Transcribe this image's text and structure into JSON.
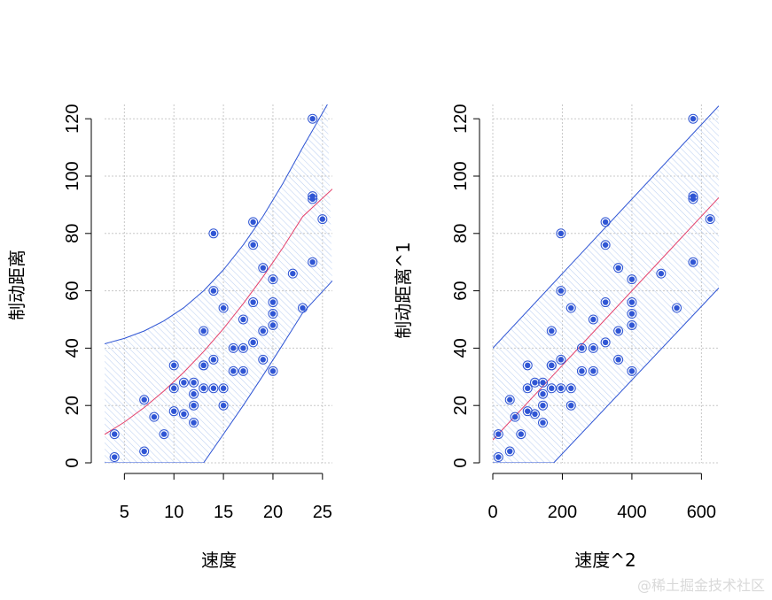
{
  "watermark": "@稀土掘金技术社区",
  "colors": {
    "points": "#2f55d4",
    "fit_line": "#e4406a",
    "band": "#2f55d4",
    "hatch": "#bcd0f2",
    "grid": "#c8c8c8",
    "axis": "#000000"
  },
  "chart_data": [
    {
      "type": "scatter",
      "xlabel": "速度",
      "ylabel": "制动距离",
      "xlim": [
        3,
        26
      ],
      "ylim": [
        0,
        125
      ],
      "xticks": [
        5,
        10,
        15,
        20,
        25
      ],
      "yticks": [
        0,
        20,
        40,
        60,
        80,
        100,
        120
      ],
      "grid": true,
      "points": [
        [
          4,
          2
        ],
        [
          4,
          10
        ],
        [
          7,
          4
        ],
        [
          7,
          22
        ],
        [
          8,
          16
        ],
        [
          9,
          10
        ],
        [
          10,
          18
        ],
        [
          10,
          26
        ],
        [
          10,
          34
        ],
        [
          11,
          17
        ],
        [
          11,
          28
        ],
        [
          12,
          14
        ],
        [
          12,
          20
        ],
        [
          12,
          24
        ],
        [
          12,
          28
        ],
        [
          13,
          26
        ],
        [
          13,
          34
        ],
        [
          13,
          34
        ],
        [
          13,
          46
        ],
        [
          14,
          26
        ],
        [
          14,
          36
        ],
        [
          14,
          60
        ],
        [
          14,
          80
        ],
        [
          15,
          20
        ],
        [
          15,
          26
        ],
        [
          15,
          54
        ],
        [
          16,
          32
        ],
        [
          16,
          40
        ],
        [
          17,
          32
        ],
        [
          17,
          40
        ],
        [
          17,
          50
        ],
        [
          18,
          42
        ],
        [
          18,
          56
        ],
        [
          18,
          76
        ],
        [
          18,
          84
        ],
        [
          19,
          36
        ],
        [
          19,
          46
        ],
        [
          19,
          68
        ],
        [
          20,
          32
        ],
        [
          20,
          48
        ],
        [
          20,
          52
        ],
        [
          20,
          56
        ],
        [
          20,
          64
        ],
        [
          22,
          66
        ],
        [
          23,
          54
        ],
        [
          24,
          70
        ],
        [
          24,
          92
        ],
        [
          24,
          93
        ],
        [
          24,
          120
        ],
        [
          25,
          85
        ]
      ],
      "fit_curve": [
        [
          3,
          9.9
        ],
        [
          5,
          14.2
        ],
        [
          7,
          19.3
        ],
        [
          9,
          25.1
        ],
        [
          11,
          31.6
        ],
        [
          13,
          38.8
        ],
        [
          15,
          46.8
        ],
        [
          17,
          55.5
        ],
        [
          19,
          64.9
        ],
        [
          21,
          75.0
        ],
        [
          23,
          85.9
        ],
        [
          26,
          95.5
        ]
      ],
      "upper_band": [
        [
          3,
          41.5
        ],
        [
          5,
          43.4
        ],
        [
          7,
          46.0
        ],
        [
          9,
          49.5
        ],
        [
          11,
          54.1
        ],
        [
          13,
          60.0
        ],
        [
          15,
          67.3
        ],
        [
          17,
          76.0
        ],
        [
          19,
          86.0
        ],
        [
          21,
          97.4
        ],
        [
          23,
          110.0
        ],
        [
          25.5,
          125.0
        ]
      ],
      "lower_band": [
        [
          3,
          0
        ],
        [
          13,
          0
        ],
        [
          15,
          10.0
        ],
        [
          17,
          20.0
        ],
        [
          19,
          30.5
        ],
        [
          21,
          41.3
        ],
        [
          23,
          52.3
        ],
        [
          26,
          63.5
        ]
      ]
    },
    {
      "type": "scatter",
      "xlabel": "速度^2",
      "ylabel": "制动距离^1",
      "xlim": [
        0,
        650
      ],
      "ylim": [
        0,
        125
      ],
      "xticks": [
        0,
        200,
        400,
        600
      ],
      "yticks": [
        0,
        20,
        40,
        60,
        80,
        100,
        120
      ],
      "grid": true,
      "points": [
        [
          16,
          2
        ],
        [
          16,
          10
        ],
        [
          49,
          4
        ],
        [
          49,
          22
        ],
        [
          64,
          16
        ],
        [
          81,
          10
        ],
        [
          100,
          18
        ],
        [
          100,
          26
        ],
        [
          100,
          34
        ],
        [
          121,
          17
        ],
        [
          121,
          28
        ],
        [
          144,
          14
        ],
        [
          144,
          20
        ],
        [
          144,
          24
        ],
        [
          144,
          28
        ],
        [
          169,
          26
        ],
        [
          169,
          34
        ],
        [
          169,
          34
        ],
        [
          169,
          46
        ],
        [
          196,
          26
        ],
        [
          196,
          36
        ],
        [
          196,
          60
        ],
        [
          196,
          80
        ],
        [
          225,
          20
        ],
        [
          225,
          26
        ],
        [
          225,
          54
        ],
        [
          256,
          32
        ],
        [
          256,
          40
        ],
        [
          289,
          32
        ],
        [
          289,
          40
        ],
        [
          289,
          50
        ],
        [
          324,
          42
        ],
        [
          324,
          56
        ],
        [
          324,
          76
        ],
        [
          324,
          84
        ],
        [
          361,
          36
        ],
        [
          361,
          46
        ],
        [
          361,
          68
        ],
        [
          400,
          32
        ],
        [
          400,
          48
        ],
        [
          400,
          52
        ],
        [
          400,
          56
        ],
        [
          400,
          64
        ],
        [
          484,
          66
        ],
        [
          529,
          54
        ],
        [
          576,
          70
        ],
        [
          576,
          92
        ],
        [
          576,
          93
        ],
        [
          576,
          120
        ],
        [
          625,
          85
        ]
      ],
      "fit_curve": [
        [
          0,
          8.0
        ],
        [
          650,
          92.5
        ]
      ],
      "upper_band": [
        [
          0,
          40.0
        ],
        [
          650,
          124.5
        ]
      ],
      "lower_band": [
        [
          0,
          0
        ],
        [
          175,
          0
        ],
        [
          650,
          61.0
        ]
      ]
    }
  ]
}
